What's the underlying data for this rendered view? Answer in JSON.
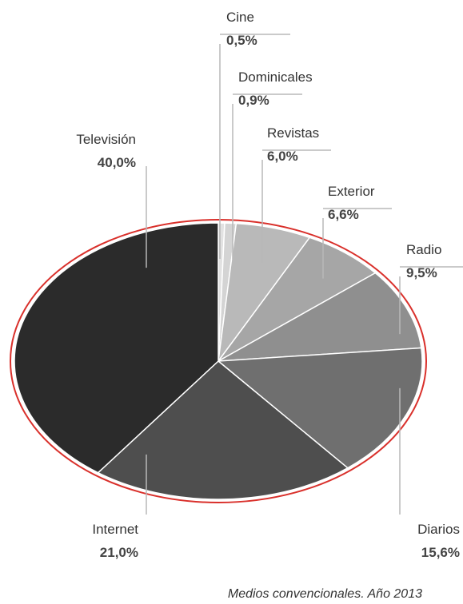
{
  "chart_data": {
    "type": "pie",
    "caption": "Medios convencionales. Año 2013",
    "slices": [
      {
        "label": "Cine",
        "value": 0.5,
        "display": "0,5%",
        "color": "#e2e2e2"
      },
      {
        "label": "Dominicales",
        "value": 0.9,
        "display": "0,9%",
        "color": "#d4d4d4"
      },
      {
        "label": "Revistas",
        "value": 6.0,
        "display": "6,0%",
        "color": "#b9b9b9"
      },
      {
        "label": "Exterior",
        "value": 6.6,
        "display": "6,6%",
        "color": "#a6a6a6"
      },
      {
        "label": "Radio",
        "value": 9.5,
        "display": "9,5%",
        "color": "#8f8f8f"
      },
      {
        "label": "Diarios",
        "value": 15.6,
        "display": "15,6%",
        "color": "#6f6f6f"
      },
      {
        "label": "Internet",
        "value": 21.0,
        "display": "21,0%",
        "color": "#4e4e4e"
      },
      {
        "label": "Televisión",
        "value": 40.0,
        "display": "40,0%",
        "color": "#2b2b2b"
      }
    ],
    "outline_color": "#d9302b",
    "leader_color": "#b8b8b8"
  }
}
